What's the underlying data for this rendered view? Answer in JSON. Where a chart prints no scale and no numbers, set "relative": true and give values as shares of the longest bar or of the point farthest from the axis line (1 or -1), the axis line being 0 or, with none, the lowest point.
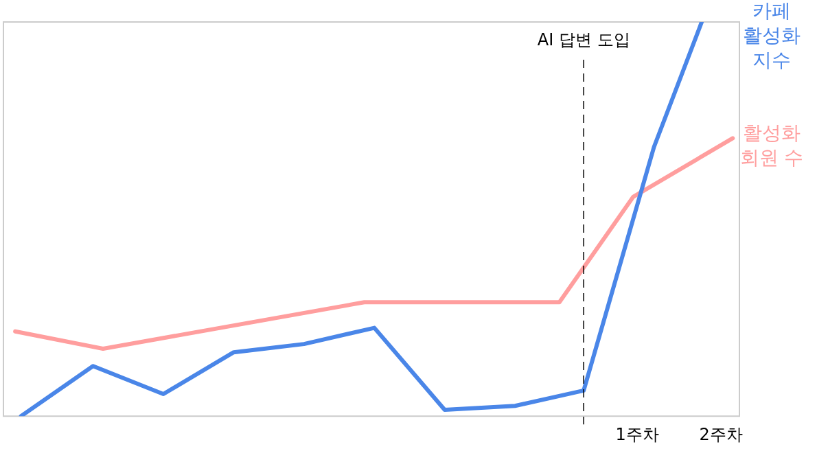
{
  "chart_data": {
    "type": "line",
    "relative": true,
    "xlim": [
      -6.57,
      2.22
    ],
    "xticks": [
      {
        "value": 1,
        "label": "1주차"
      },
      {
        "value": 2,
        "label": "2주차"
      }
    ],
    "series": [
      {
        "name": "카페 활성화 지수",
        "color": "#4a86e8",
        "x": [
          -6.36,
          -5.5,
          -4.66,
          -3.82,
          -2.98,
          -2.14,
          -1.3,
          -0.46,
          0.36,
          1.2,
          1.77
        ],
        "values": [
          0,
          0.127,
          0.056,
          0.162,
          0.183,
          0.224,
          0.016,
          0.026,
          0.065,
          0.683,
          1
        ]
      },
      {
        "name": "활성화 회원 수",
        "color": "#ff9e9e",
        "x": [
          -6.43,
          -5.38,
          -2.26,
          0.07,
          0.95,
          2.14
        ],
        "values": [
          0.215,
          0.171,
          0.289,
          0.289,
          0.556,
          0.705
        ]
      }
    ],
    "ref_lines": [
      {
        "axis": "x",
        "value": 0.36,
        "label": "AI 답변 도입",
        "line_style": "dashed",
        "color": "#000000"
      }
    ],
    "marker": "none",
    "legend": false,
    "grid": false
  }
}
